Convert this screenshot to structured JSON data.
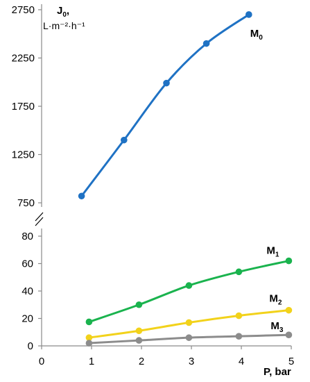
{
  "chart_data": {
    "type": "line",
    "ylabel_main": "J",
    "ylabel_sub": "0",
    "ylabel_suffix": ",",
    "ylabel_units": "L·m⁻²·h⁻¹",
    "xlabel": "P, bar",
    "xlim": [
      0,
      5
    ],
    "x_ticks": [
      "0",
      "1",
      "2",
      "3",
      "4",
      "5"
    ],
    "upper_panel": {
      "ylim": [
        750,
        2750
      ],
      "y_ticks": [
        "750",
        "1250",
        "1750",
        "2250",
        "2750"
      ]
    },
    "lower_panel": {
      "ylim": [
        0,
        80
      ],
      "y_ticks": [
        "0",
        "20",
        "40",
        "60",
        "80"
      ]
    },
    "axis_break": true,
    "grid": false,
    "series": [
      {
        "name_main": "M",
        "name_sub": "0",
        "panel": "upper",
        "color": "#1f72c4",
        "x": [
          0.8,
          1.65,
          2.5,
          3.3,
          4.15
        ],
        "y": [
          820,
          1400,
          1990,
          2400,
          2700
        ]
      },
      {
        "name_main": "M",
        "name_sub": "1",
        "panel": "lower",
        "color": "#1ab34e",
        "x": [
          0.95,
          1.95,
          2.95,
          3.95,
          4.95
        ],
        "y": [
          17.5,
          30,
          44,
          54,
          62
        ]
      },
      {
        "name_main": "M",
        "name_sub": "2",
        "panel": "lower",
        "color": "#f2d21b",
        "x": [
          0.95,
          1.95,
          2.95,
          3.95,
          4.95
        ],
        "y": [
          6,
          11,
          17,
          22,
          26
        ]
      },
      {
        "name_main": "M",
        "name_sub": "3",
        "panel": "lower",
        "color": "#8c8c8c",
        "x": [
          0.95,
          1.95,
          2.95,
          3.95,
          4.95
        ],
        "y": [
          2,
          4,
          6,
          7,
          8
        ]
      }
    ]
  }
}
